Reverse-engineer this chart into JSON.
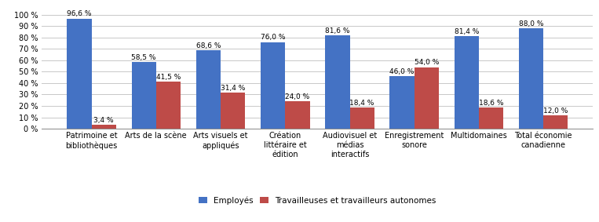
{
  "categories": [
    "Patrimoine et\nbibliothèques",
    "Arts de la scène",
    "Arts visuels et\nappliqués",
    "Création\nlittéraire et\nédition",
    "Audiovisuel et\nmédias\ninteractifs",
    "Enregistrement\nsonore",
    "Multidomaines",
    "Total économie\ncanadienne"
  ],
  "employes": [
    96.6,
    58.5,
    68.6,
    76.0,
    81.6,
    46.0,
    81.4,
    88.0
  ],
  "autonomes": [
    3.4,
    41.5,
    31.4,
    24.0,
    18.4,
    54.0,
    18.6,
    12.0
  ],
  "color_employes": "#4472C4",
  "color_autonomes": "#BE4B48",
  "legend_employes": "Employés",
  "legend_autonomes": "Travailleuses et travailleurs autonomes",
  "ylim": [
    0,
    107
  ],
  "yticks": [
    0,
    10,
    20,
    30,
    40,
    50,
    60,
    70,
    80,
    90,
    100
  ],
  "ytick_labels": [
    "0 %",
    "10 %",
    "20 %",
    "30 %",
    "40 %",
    "50 %",
    "60 %",
    "70 %",
    "80 %",
    "90 %",
    "100 %"
  ],
  "bar_width": 0.38,
  "label_fontsize": 6.5,
  "tick_fontsize": 7.0,
  "legend_fontsize": 7.5,
  "background_color": "#ffffff",
  "grid_color": "#c8c8c8"
}
